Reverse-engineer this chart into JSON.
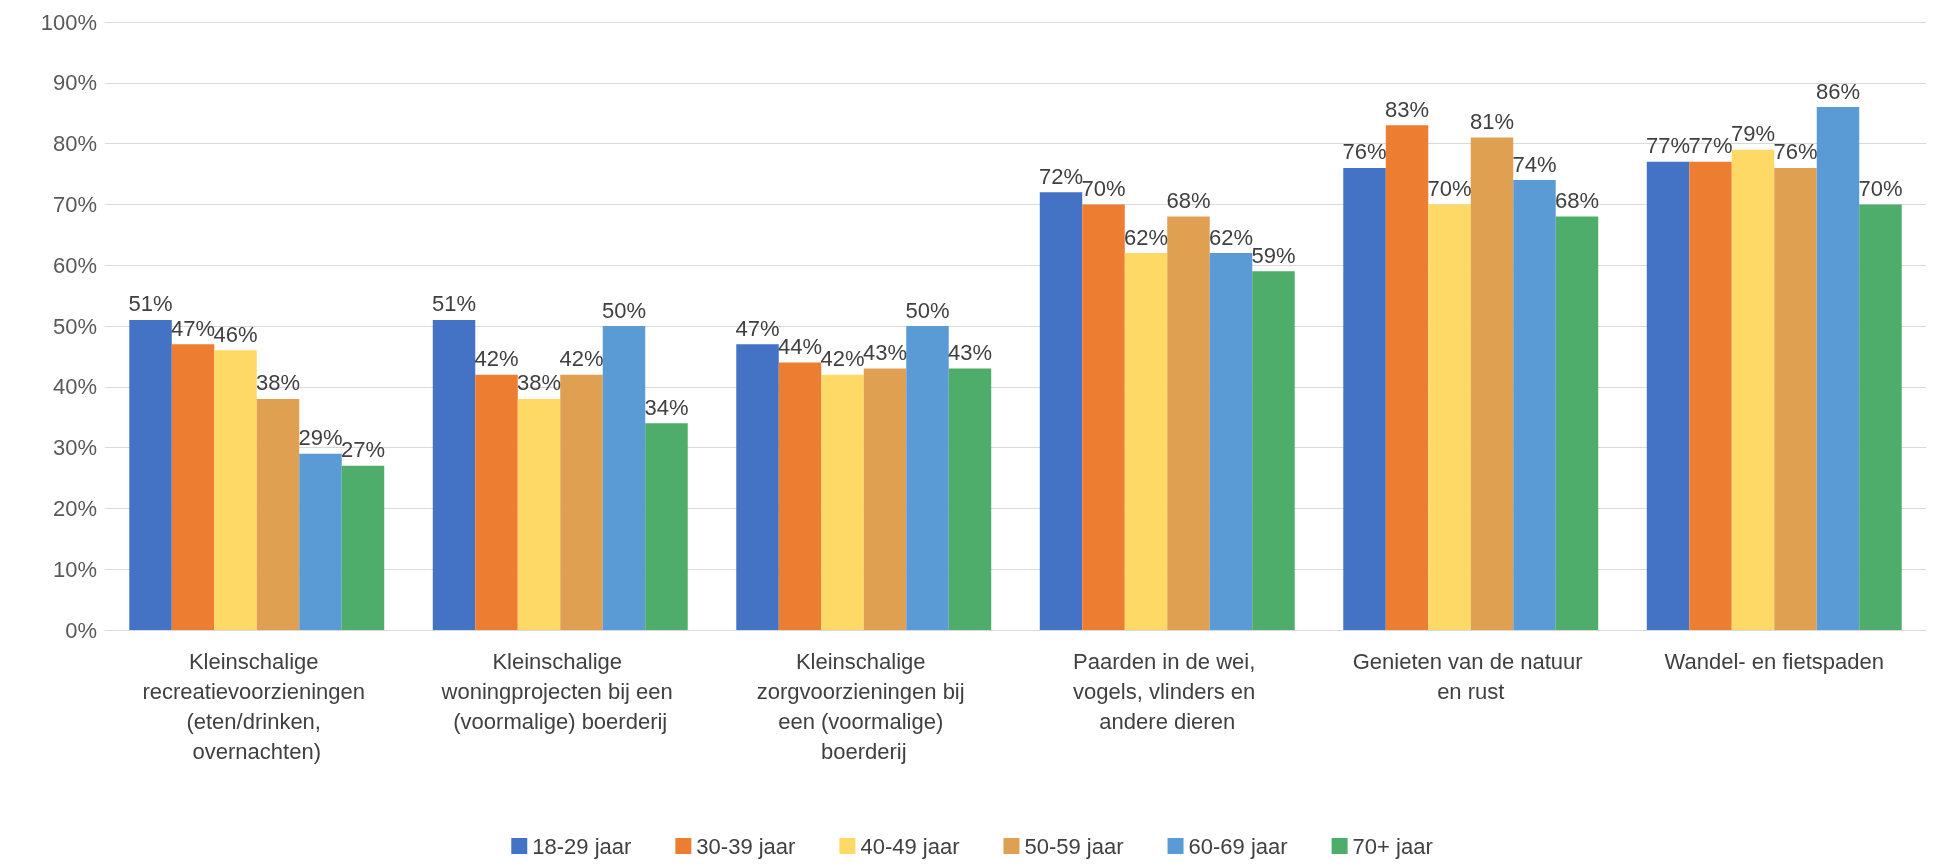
{
  "chart_data": {
    "type": "bar",
    "categories": [
      "Kleinschalige recreatievoorzieningen (eten/drinken, overnachten)",
      "Kleinschalige woningprojecten bij een (voormalige) boerderij",
      "Kleinschalige zorgvoorzieningen bij een (voormalige) boerderij",
      "Paarden in de wei, vogels, vlinders en andere dieren",
      "Genieten van de natuur en rust",
      "Wandel- en fietspaden"
    ],
    "series": [
      {
        "name": "18-29 jaar",
        "color": "#4472c4",
        "values": [
          51,
          51,
          47,
          72,
          76,
          77
        ],
        "value_labels": [
          "51%",
          "51%",
          "47%",
          "72%",
          "76%",
          "77%"
        ]
      },
      {
        "name": "30-39 jaar",
        "color": "#ed7d31",
        "values": [
          47,
          42,
          44,
          70,
          83,
          77
        ],
        "value_labels": [
          "47%",
          "42%",
          "44%",
          "70%",
          "83%",
          "77%"
        ]
      },
      {
        "name": "40-49 jaar",
        "color": "#ffd966",
        "values": [
          46,
          38,
          42,
          62,
          70,
          79
        ],
        "value_labels": [
          "46%",
          "38%",
          "42%",
          "62%",
          "70%",
          "79%"
        ]
      },
      {
        "name": "50-59 jaar",
        "color": "#dfa052",
        "values": [
          38,
          42,
          43,
          68,
          81,
          76
        ],
        "value_labels": [
          "38%",
          "42%",
          "43%",
          "68%",
          "81%",
          "76%"
        ]
      },
      {
        "name": "60-69 jaar",
        "color": "#5b9bd5",
        "values": [
          29,
          50,
          50,
          62,
          74,
          86
        ],
        "value_labels": [
          "29%",
          "50%",
          "50%",
          "62%",
          "74%",
          "86%"
        ]
      },
      {
        "name": "70+ jaar",
        "color": "#4fad6b",
        "values": [
          27,
          34,
          43,
          59,
          68,
          70
        ],
        "value_labels": [
          "27%",
          "34%",
          "43%",
          "59%",
          "68%",
          "70%"
        ]
      }
    ],
    "ylim": [
      0,
      100
    ],
    "yticks": [
      {
        "value": 0,
        "label": "0%"
      },
      {
        "value": 10,
        "label": "10%"
      },
      {
        "value": 20,
        "label": "20%"
      },
      {
        "value": 30,
        "label": "30%"
      },
      {
        "value": 40,
        "label": "40%"
      },
      {
        "value": 50,
        "label": "50%"
      },
      {
        "value": 60,
        "label": "60%"
      },
      {
        "value": 70,
        "label": "70%"
      },
      {
        "value": 80,
        "label": "80%"
      },
      {
        "value": 90,
        "label": "90%"
      },
      {
        "value": 100,
        "label": "100%"
      }
    ],
    "grid": "y",
    "legend": "bottom"
  }
}
